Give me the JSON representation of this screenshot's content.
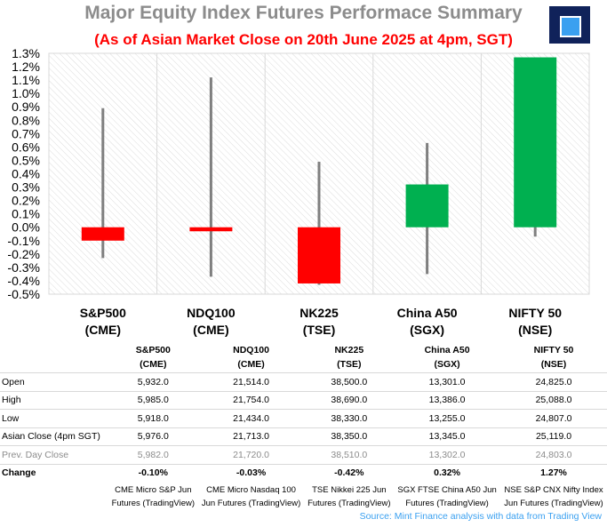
{
  "title": "Major Equity Index Futures Performace Summary",
  "subtitle": "(As of Asian Market Close on 20th June 2025 at 4pm, SGT)",
  "footer": "Source: Mint Finance analysis with data from Trading View",
  "colors": {
    "up": "#00b050",
    "down": "#ff0000",
    "wick": "#7f7f7f",
    "title": "#8c8c8c",
    "accent": "#3aa0f0"
  },
  "chart_data": {
    "type": "bar",
    "subtype": "candlestick",
    "ylim": [
      -0.5,
      1.3
    ],
    "yticks": [
      "1.3%",
      "1.2%",
      "1.1%",
      "1.0%",
      "0.9%",
      "0.8%",
      "0.7%",
      "0.6%",
      "0.5%",
      "0.4%",
      "0.3%",
      "0.2%",
      "0.1%",
      "0.0%",
      "-0.1%",
      "-0.2%",
      "-0.3%",
      "-0.4%",
      "-0.5%"
    ],
    "categories": [
      "S&P500",
      "NDQ100",
      "NK225",
      "China A50",
      "NIFTY 50"
    ],
    "category_sub": [
      "(CME)",
      "(CME)",
      "(TSE)",
      "(SGX)",
      "(NSE)"
    ],
    "open_pct": [
      0,
      0,
      0,
      0,
      0
    ],
    "close_pct": [
      -0.1,
      -0.03,
      -0.42,
      0.32,
      1.27
    ],
    "high_pct": [
      0.89,
      1.12,
      0.49,
      0.63,
      1.27
    ],
    "low_pct": [
      -0.23,
      -0.37,
      -0.43,
      -0.35,
      -0.07
    ],
    "grid": true,
    "legend": "none"
  },
  "table": {
    "header": [
      {
        "l1": "S&P500",
        "l2": "(CME)"
      },
      {
        "l1": "NDQ100",
        "l2": "(CME)"
      },
      {
        "l1": "NK225",
        "l2": "(TSE)"
      },
      {
        "l1": "China A50",
        "l2": "(SGX)"
      },
      {
        "l1": "NIFTY 50",
        "l2": "(NSE)"
      }
    ],
    "rows": [
      {
        "label": "Open",
        "values": [
          "5,932.0",
          "21,514.0",
          "38,500.0",
          "13,301.0",
          "24,825.0"
        ]
      },
      {
        "label": "High",
        "values": [
          "5,985.0",
          "21,754.0",
          "38,690.0",
          "13,386.0",
          "25,088.0"
        ]
      },
      {
        "label": "Low",
        "values": [
          "5,918.0",
          "21,434.0",
          "38,330.0",
          "13,255.0",
          "24,807.0"
        ]
      },
      {
        "label": "Asian Close (4pm SGT)",
        "values": [
          "5,976.0",
          "21,713.0",
          "38,350.0",
          "13,345.0",
          "25,119.0"
        ]
      },
      {
        "label": "Prev. Day Close",
        "values": [
          "5,982.0",
          "21,720.0",
          "38,510.0",
          "13,302.0",
          "24,803.0"
        ]
      }
    ],
    "change": {
      "label": "Change",
      "values": [
        "-0.10%",
        "-0.03%",
        "-0.42%",
        "0.32%",
        "1.27%"
      ]
    },
    "sources": [
      {
        "l1": "CME Micro S&P Jun",
        "l2": "Futures (TradingView)"
      },
      {
        "l1": "CME Micro Nasdaq 100",
        "l2": "Jun Futures (TradingView)"
      },
      {
        "l1": "TSE Nikkei 225 Jun",
        "l2": "Futures (TradingView)"
      },
      {
        "l1": "SGX FTSE China A50 Jun",
        "l2": "Futures (TradingView)"
      },
      {
        "l1": "NSE S&P CNX Nifty Index",
        "l2": "Jun Futures (TradingView)"
      }
    ]
  }
}
